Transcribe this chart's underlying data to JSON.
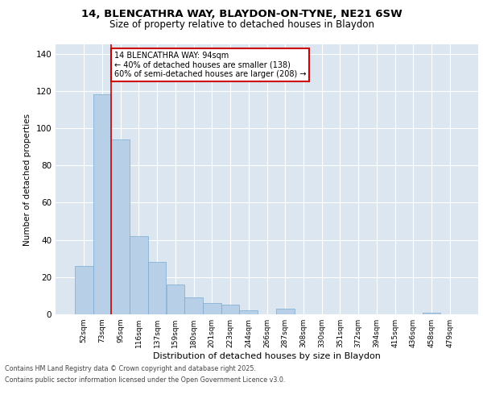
{
  "title_line1": "14, BLENCATHRA WAY, BLAYDON-ON-TYNE, NE21 6SW",
  "title_line2": "Size of property relative to detached houses in Blaydon",
  "xlabel": "Distribution of detached houses by size in Blaydon",
  "ylabel": "Number of detached properties",
  "categories": [
    "52sqm",
    "73sqm",
    "95sqm",
    "116sqm",
    "137sqm",
    "159sqm",
    "180sqm",
    "201sqm",
    "223sqm",
    "244sqm",
    "266sqm",
    "287sqm",
    "308sqm",
    "330sqm",
    "351sqm",
    "372sqm",
    "394sqm",
    "415sqm",
    "436sqm",
    "458sqm",
    "479sqm"
  ],
  "values": [
    26,
    118,
    94,
    42,
    28,
    16,
    9,
    6,
    5,
    2,
    0,
    3,
    0,
    0,
    0,
    0,
    0,
    0,
    0,
    1,
    0
  ],
  "bar_color": "#b8cfe8",
  "bar_edge_color": "#7aaad0",
  "plot_bg_color": "#dce6f0",
  "annotation_text": "14 BLENCATHRA WAY: 94sqm\n← 40% of detached houses are smaller (138)\n60% of semi-detached houses are larger (208) →",
  "annotation_box_facecolor": "#ffffff",
  "annotation_box_edgecolor": "#cc0000",
  "vline_color": "#cc0000",
  "vline_x_index": 1.5,
  "ylim": [
    0,
    145
  ],
  "yticks": [
    0,
    20,
    40,
    60,
    80,
    100,
    120,
    140
  ],
  "footer_line1": "Contains HM Land Registry data © Crown copyright and database right 2025.",
  "footer_line2": "Contains public sector information licensed under the Open Government Licence v3.0.",
  "fig_bg_color": "#ffffff",
  "grid_color": "#ffffff"
}
